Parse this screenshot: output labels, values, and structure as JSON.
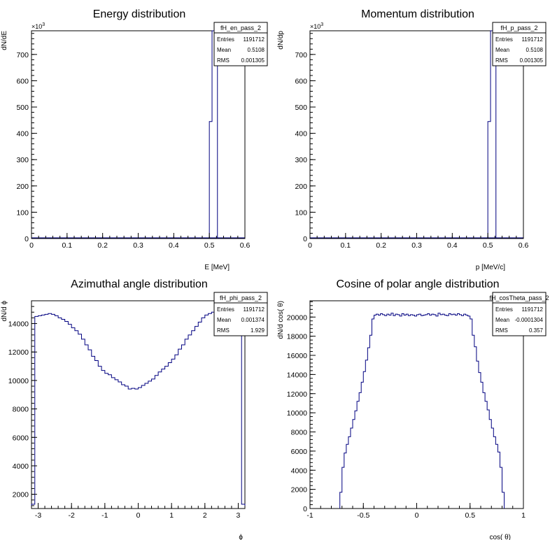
{
  "chart_data": [
    {
      "type": "histogram",
      "title": "Energy distribution",
      "xlabel": "E [MeV]",
      "ylabel": "dN/dE",
      "y_exponent_label": "×10",
      "y_exponent_power": "3",
      "xlim": [
        0,
        0.6
      ],
      "ylim": [
        0,
        790
      ],
      "xticks": [
        "0",
        "0.1",
        "0.2",
        "0.3",
        "0.4",
        "0.5",
        "0.6"
      ],
      "xtick_values": [
        0,
        0.1,
        0.2,
        0.3,
        0.4,
        0.5,
        0.6
      ],
      "yticks": [
        "0",
        "100",
        "200",
        "300",
        "400",
        "500",
        "600",
        "700"
      ],
      "ytick_values": [
        0,
        100,
        200,
        300,
        400,
        500,
        600,
        700
      ],
      "bins": {
        "x": [
          0.5,
          0.5076,
          0.5152,
          0.5228
        ],
        "values": [
          445,
          790,
          790
        ]
      },
      "stats": {
        "name": "fH_en_pass_2",
        "labels": [
          "Entries",
          "Mean",
          "RMS"
        ],
        "values": [
          "1191712",
          "0.5108",
          "0.001305"
        ]
      }
    },
    {
      "type": "histogram",
      "title": "Momentum distribution",
      "xlabel": "p [MeV/c]",
      "ylabel": "dN/dp",
      "y_exponent_label": "×10",
      "y_exponent_power": "3",
      "xlim": [
        0,
        0.6
      ],
      "ylim": [
        0,
        790
      ],
      "xticks": [
        "0",
        "0.1",
        "0.2",
        "0.3",
        "0.4",
        "0.5",
        "0.6"
      ],
      "xtick_values": [
        0,
        0.1,
        0.2,
        0.3,
        0.4,
        0.5,
        0.6
      ],
      "yticks": [
        "0",
        "100",
        "200",
        "300",
        "400",
        "500",
        "600",
        "700"
      ],
      "ytick_values": [
        0,
        100,
        200,
        300,
        400,
        500,
        600,
        700
      ],
      "bins": {
        "x": [
          0.5,
          0.5076,
          0.5152,
          0.5228
        ],
        "values": [
          445,
          790,
          790
        ]
      },
      "stats": {
        "name": "fH_p_pass_2",
        "labels": [
          "Entries",
          "Mean",
          "RMS"
        ],
        "values": [
          "1191712",
          "0.5108",
          "0.001305"
        ]
      }
    },
    {
      "type": "histogram",
      "title": "Azimuthal angle distribution",
      "xlabel": "ϕ",
      "ylabel": "dN/d ϕ",
      "xlim": [
        -3.2,
        3.2
      ],
      "ylim": [
        1000,
        15600
      ],
      "xticks": [
        "-3",
        "-2",
        "-1",
        "0",
        "1",
        "2",
        "3"
      ],
      "xtick_values": [
        -3,
        -2,
        -1,
        0,
        1,
        2,
        3
      ],
      "yticks": [
        "2000",
        "4000",
        "6000",
        "8000",
        "10000",
        "12000",
        "14000"
      ],
      "ytick_values": [
        2000,
        4000,
        6000,
        8000,
        10000,
        12000,
        14000
      ],
      "bins": {
        "x_start": -3.2,
        "x_step": 0.1,
        "values": [
          1300,
          14500,
          14550,
          14600,
          14650,
          14700,
          14650,
          14550,
          14400,
          14300,
          14150,
          13950,
          13700,
          13500,
          13250,
          12900,
          12500,
          12150,
          11700,
          11400,
          11000,
          10700,
          10500,
          10400,
          10200,
          10050,
          9900,
          9700,
          9600,
          9400,
          9450,
          9400,
          9500,
          9650,
          9800,
          9950,
          10100,
          10350,
          10600,
          10800,
          11000,
          11250,
          11500,
          11800,
          12200,
          12500,
          12900,
          13200,
          13500,
          13800,
          14100,
          14400,
          14600,
          14700,
          14800,
          14850,
          14850,
          14800,
          14750,
          14700,
          14650,
          14600,
          14550,
          1300
        ]
      },
      "stats": {
        "name": "fH_phi_pass_2",
        "labels": [
          "Entries",
          "Mean",
          "RMS"
        ],
        "values": [
          "1191712",
          "0.001374",
          "1.929"
        ]
      }
    },
    {
      "type": "histogram",
      "title": "Cosine of polar angle distribution",
      "xlabel": "cos( θ)",
      "ylabel": "dN/d cos( θ)",
      "xlim": [
        -1,
        1
      ],
      "ylim": [
        0,
        21700
      ],
      "xticks": [
        "-1",
        "-0.5",
        "0",
        "0.5",
        "1"
      ],
      "xtick_values": [
        -1,
        -0.5,
        0,
        0.5,
        1
      ],
      "yticks": [
        "0",
        "2000",
        "4000",
        "6000",
        "8000",
        "10000",
        "12000",
        "14000",
        "16000",
        "18000",
        "20000"
      ],
      "ytick_values": [
        0,
        2000,
        4000,
        6000,
        8000,
        10000,
        12000,
        14000,
        16000,
        18000,
        20000
      ],
      "bins": {
        "x_start": -0.72,
        "x_step": 0.02,
        "values": [
          1700,
          4300,
          5800,
          6700,
          7500,
          8400,
          9300,
          10200,
          11200,
          12100,
          13200,
          14300,
          15500,
          16800,
          18100,
          19800,
          20200,
          20300,
          20200,
          20350,
          20250,
          20150,
          20300,
          20200,
          20400,
          20150,
          20300,
          20250,
          20100,
          20350,
          20200,
          20300,
          20150,
          20250,
          20200,
          20100,
          20250,
          20300,
          20150,
          20200,
          20250,
          20350,
          20200,
          20300,
          20250,
          20100,
          20400,
          20250,
          20300,
          20200,
          20150,
          20350,
          20250,
          20300,
          20200,
          20350,
          20250,
          20150,
          20300,
          20200,
          20100,
          19800,
          18100,
          16900,
          15400,
          14200,
          13200,
          12100,
          11200,
          10300,
          9300,
          8400,
          7500,
          6700,
          5900,
          4300,
          1700
        ]
      },
      "stats": {
        "name": "fH_cosTheta_pass_2",
        "labels": [
          "Entries",
          "Mean",
          "RMS"
        ],
        "values": [
          "1191712",
          "-0.0001304",
          "0.357"
        ]
      }
    }
  ]
}
